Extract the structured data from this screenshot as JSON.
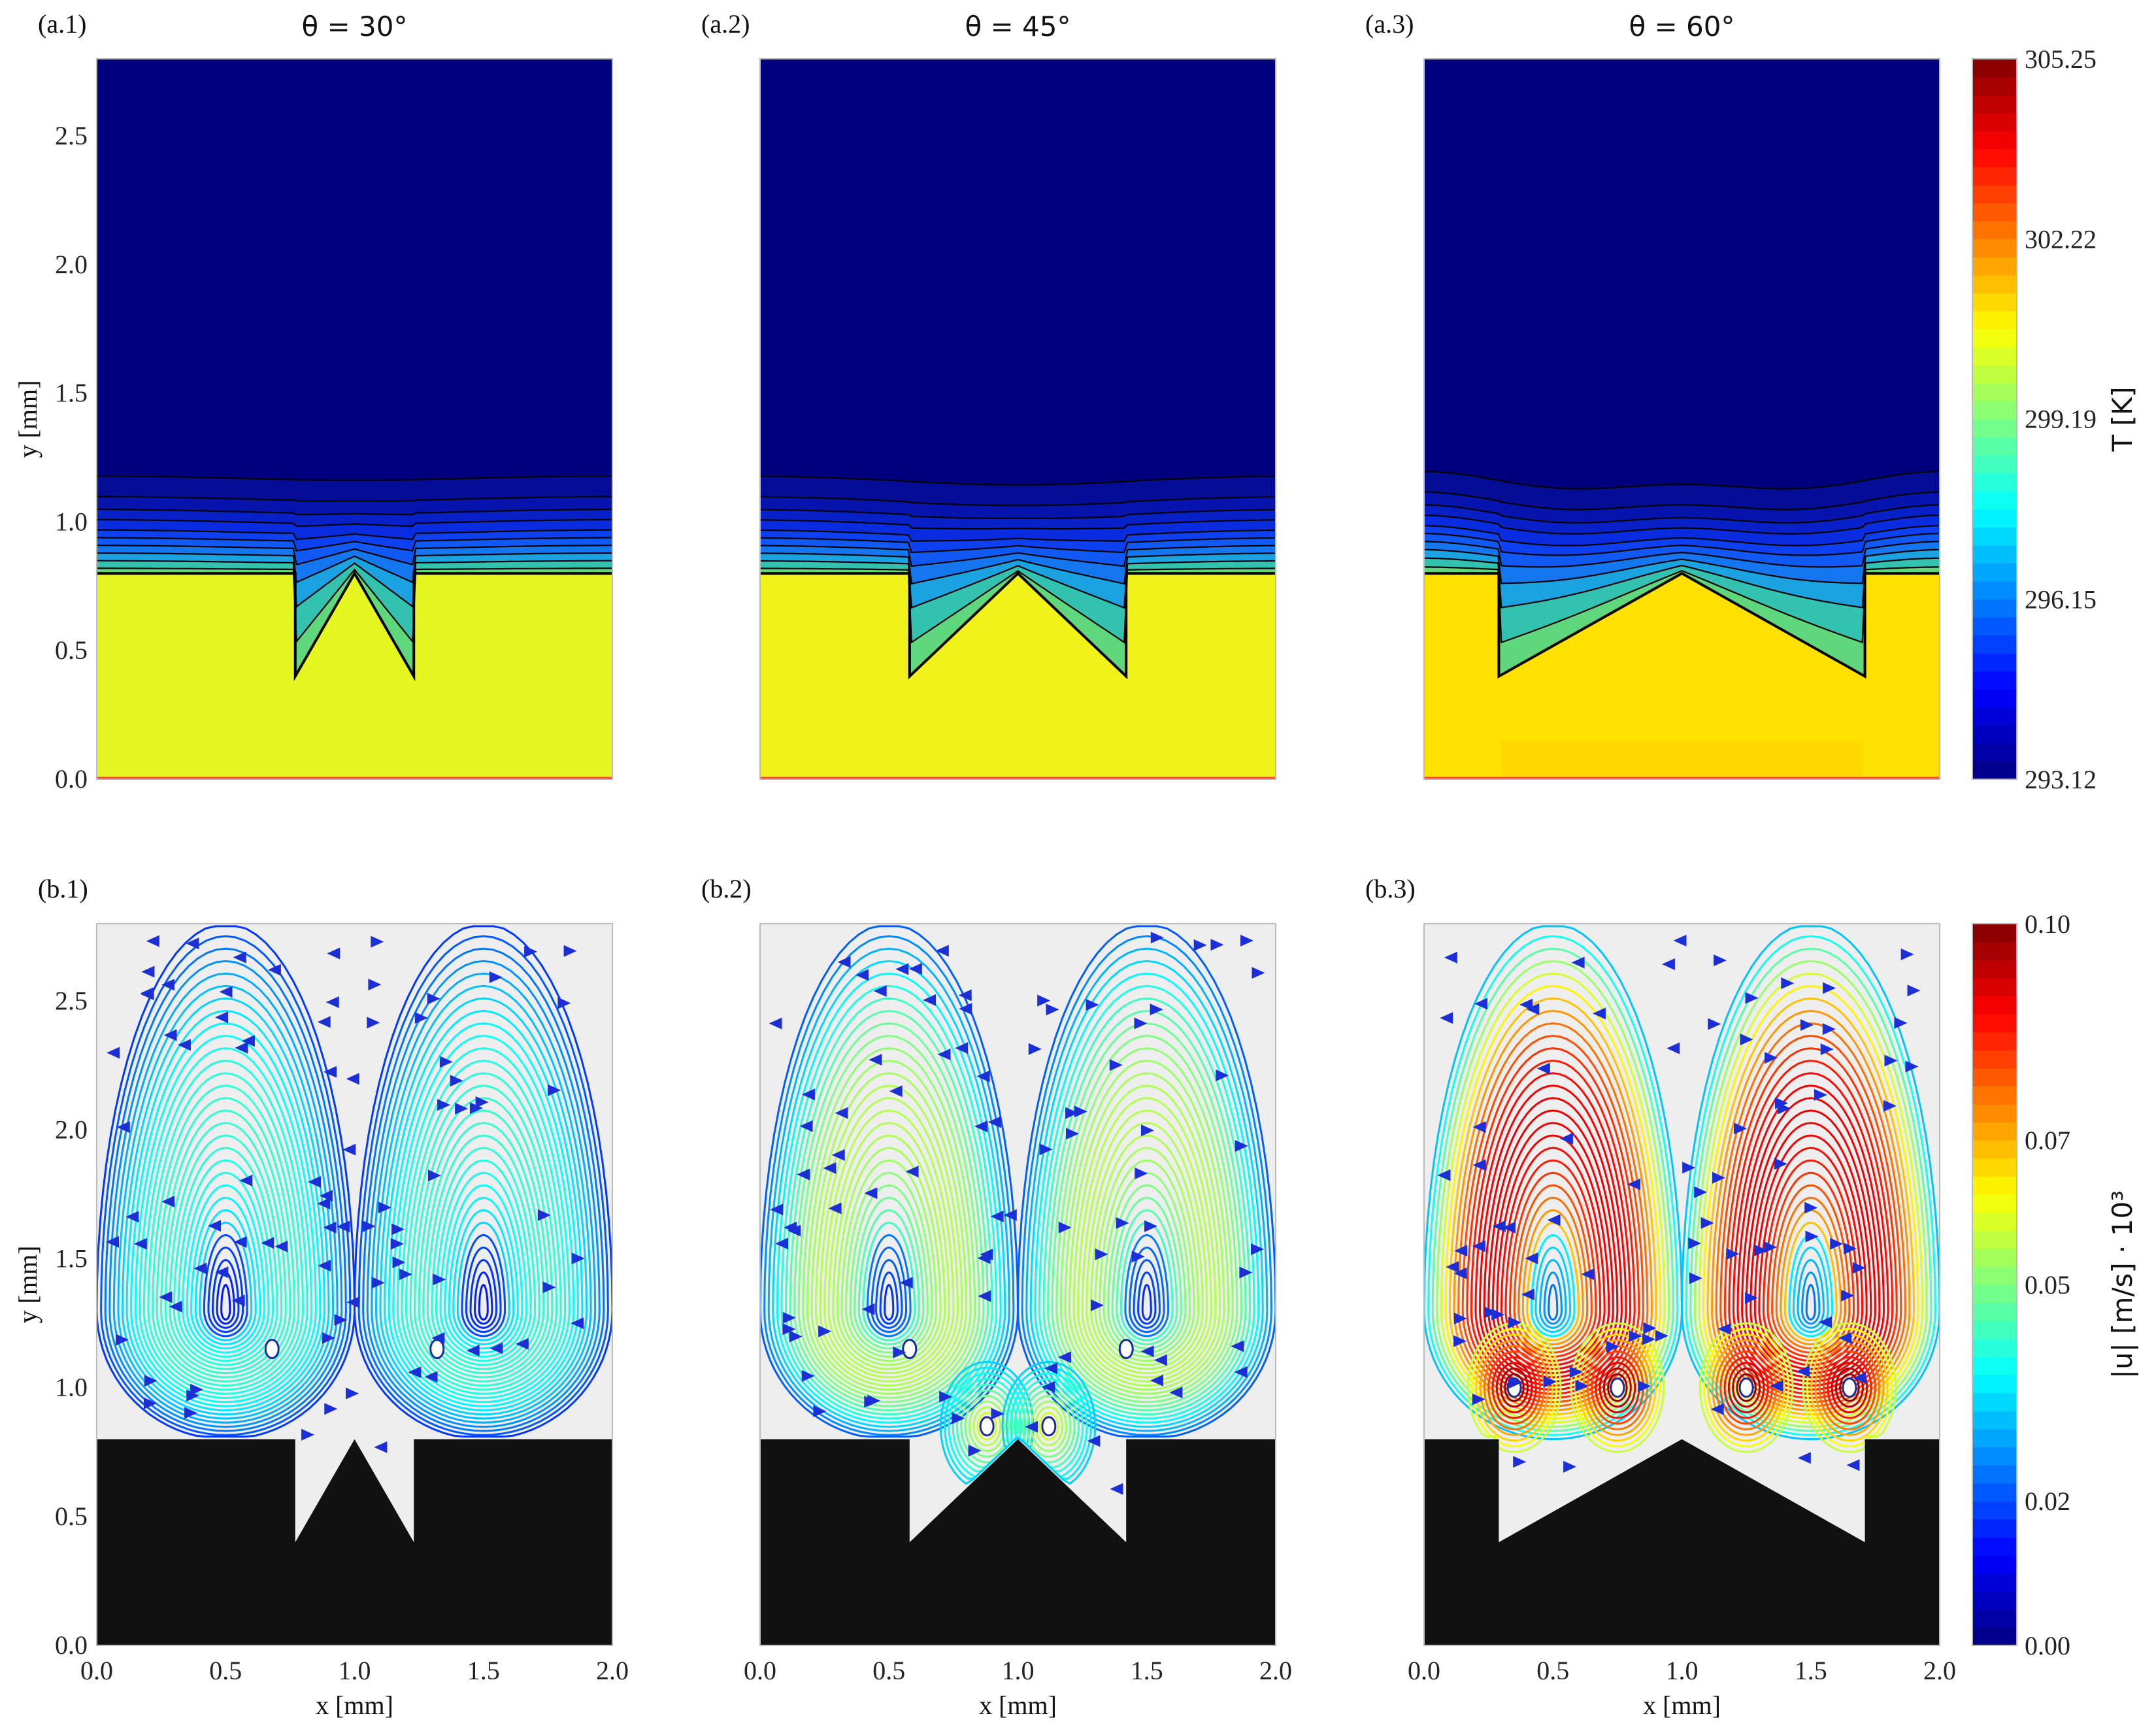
{
  "chart_data": [
    {
      "type": "heatmap",
      "panel": "(a.1)",
      "title": "θ = 30°",
      "xlabel": "",
      "ylabel": "y [mm]",
      "xlim": [
        0.0,
        2.0
      ],
      "ylim": [
        0.0,
        2.8
      ],
      "yticks": [
        "0.0",
        "0.5",
        "1.0",
        "1.5",
        "2.0",
        "2.5"
      ],
      "groove": {
        "left": 0.77,
        "right": 1.23,
        "tip": 1.0,
        "top": 0.8,
        "bottom": 0.4
      },
      "surface_T": "≈300.8",
      "isotherm_levels_y_far": [
        0.82,
        0.85,
        0.88,
        0.91,
        0.94,
        0.97,
        1.01,
        1.05,
        1.1,
        1.18
      ]
    },
    {
      "type": "heatmap",
      "panel": "(a.2)",
      "title": "θ = 45°",
      "xlabel": "",
      "ylabel": "",
      "xlim": [
        0.0,
        2.0
      ],
      "ylim": [
        0.0,
        2.8
      ],
      "groove": {
        "left": 0.58,
        "right": 1.42,
        "tip": 1.0,
        "top": 0.8,
        "bottom": 0.4
      },
      "surface_T": "≈300.7",
      "isotherm_levels_y_far": [
        0.82,
        0.85,
        0.88,
        0.91,
        0.94,
        0.97,
        1.01,
        1.05,
        1.1,
        1.18
      ]
    },
    {
      "type": "heatmap",
      "panel": "(a.3)",
      "title": "θ = 60°",
      "xlabel": "",
      "ylabel": "",
      "xlim": [
        0.0,
        2.0
      ],
      "ylim": [
        0.0,
        2.8
      ],
      "groove": {
        "left": 0.29,
        "right": 1.71,
        "tip": 1.0,
        "top": 0.8,
        "bottom": 0.4
      },
      "surface_T": "≈301.3",
      "isotherm_levels_y_far": [
        0.82,
        0.85,
        0.88,
        0.91,
        0.94,
        0.97,
        1.01,
        1.05,
        1.1,
        1.18
      ]
    },
    {
      "type": "colorbar",
      "label": "T [K]",
      "ticks": [
        "305.25",
        "302.22",
        "299.19",
        "296.15",
        "293.12"
      ],
      "range": [
        293.12,
        305.25
      ],
      "colormap": "jet"
    },
    {
      "type": "scatter",
      "panel": "(b.1)",
      "title": "",
      "xlabel": "x [mm]",
      "ylabel": "y [mm]",
      "xlim": [
        0.0,
        2.0
      ],
      "ylim": [
        0.0,
        2.8
      ],
      "xticks": [
        "0.0",
        "0.5",
        "1.0",
        "1.5",
        "2.0"
      ],
      "yticks": [
        "0.0",
        "0.5",
        "1.0",
        "1.5",
        "2.0",
        "2.5"
      ],
      "groove": {
        "left": 0.77,
        "right": 1.23,
        "tip": 1.0,
        "top": 0.8,
        "bottom": 0.4
      },
      "vortex_centers": [
        [
          0.68,
          1.15
        ],
        [
          1.32,
          1.15
        ]
      ],
      "max_speed": 0.04
    },
    {
      "type": "scatter",
      "panel": "(b.2)",
      "title": "",
      "xlabel": "x [mm]",
      "ylabel": "",
      "xlim": [
        0.0,
        2.0
      ],
      "ylim": [
        0.0,
        2.8
      ],
      "xticks": [
        "0.0",
        "0.5",
        "1.0",
        "1.5",
        "2.0"
      ],
      "groove": {
        "left": 0.58,
        "right": 1.42,
        "tip": 1.0,
        "top": 0.8,
        "bottom": 0.4
      },
      "vortex_centers": [
        [
          0.58,
          1.15
        ],
        [
          1.42,
          1.15
        ],
        [
          0.88,
          0.85
        ],
        [
          1.12,
          0.85
        ]
      ],
      "max_speed": 0.055
    },
    {
      "type": "scatter",
      "panel": "(b.3)",
      "title": "",
      "xlabel": "x [mm]",
      "ylabel": "",
      "xlim": [
        0.0,
        2.0
      ],
      "ylim": [
        0.0,
        2.8
      ],
      "xticks": [
        "0.0",
        "0.5",
        "1.0",
        "1.5",
        "2.0"
      ],
      "groove": {
        "left": 0.29,
        "right": 1.71,
        "tip": 1.0,
        "top": 0.8,
        "bottom": 0.4
      },
      "vortex_centers": [
        [
          0.35,
          1.0
        ],
        [
          0.75,
          1.0
        ],
        [
          1.25,
          1.0
        ],
        [
          1.65,
          1.0
        ]
      ],
      "max_speed": 0.095
    },
    {
      "type": "colorbar",
      "label": "|u| [m/s] · 10³",
      "ticks": [
        "0.10",
        "0.07",
        "0.05",
        "0.02",
        "0.00"
      ],
      "range": [
        0.0,
        0.1
      ],
      "colormap": "jet"
    }
  ]
}
